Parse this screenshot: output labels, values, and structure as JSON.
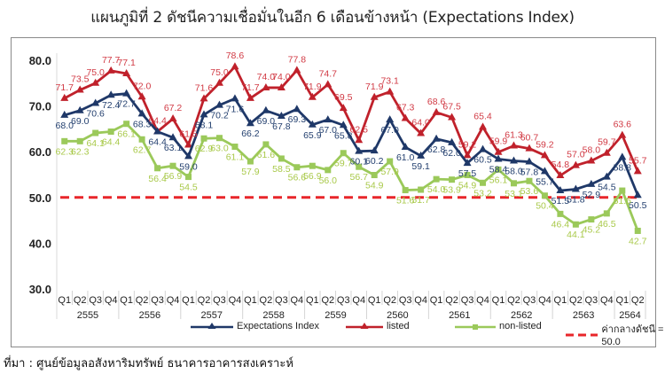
{
  "title": "แผนภูมิที่ 2 ดัชนีความเชื่อมั่นในอีก 6 เดือนข้างหน้า (Expectations Index)",
  "source": "ที่มา : ศูนย์ข้อมูลอสังหาริมทรัพย์ ธนาคารอาคารสงเคราะห์",
  "colors": {
    "expectations": "#1f3868",
    "listed": "#c0212b",
    "non_listed": "#9bc95a",
    "threshold": "#e8262a"
  },
  "legend": [
    {
      "key": "expectations",
      "label": "Expectations Index",
      "marker": "triangle"
    },
    {
      "key": "listed",
      "label": "listed",
      "marker": "triangle"
    },
    {
      "key": "non_listed",
      "label": "non-listed",
      "marker": "square"
    },
    {
      "key": "threshold",
      "label": "ค่ากลางดัชนี = 50.0",
      "marker": "dashed"
    }
  ],
  "chart_data": {
    "type": "line",
    "title": "แผนภูมิที่ 2 ดัชนีความเชื่อมั่นในอีก 6 เดือนข้างหน้า (Expectations Index)",
    "xlabel": "",
    "ylabel": "",
    "ylim": [
      30,
      80
    ],
    "yticks": [
      "30.0",
      "40.0",
      "50.0",
      "60.0",
      "70.0",
      "80.0"
    ],
    "grid": false,
    "legend_position": "bottom",
    "years": [
      "2555",
      "2556",
      "2557",
      "2558",
      "2559",
      "2560",
      "2561",
      "2562",
      "2563",
      "2564"
    ],
    "year_quarters": [
      4,
      4,
      4,
      4,
      4,
      4,
      4,
      4,
      4,
      2
    ],
    "categories": [
      "2555 Q1",
      "2555 Q2",
      "2555 Q3",
      "2555 Q4",
      "2556 Q1",
      "2556 Q2",
      "2556 Q3",
      "2556 Q4",
      "2557 Q1",
      "2557 Q2",
      "2557 Q3",
      "2557 Q4",
      "2558 Q1",
      "2558 Q2",
      "2558 Q3",
      "2558 Q4",
      "2559 Q1",
      "2559 Q2",
      "2559 Q3",
      "2559 Q4",
      "2560 Q1",
      "2560 Q2",
      "2560 Q3",
      "2560 Q4",
      "2561 Q1",
      "2561 Q2",
      "2561 Q3",
      "2561 Q4",
      "2562 Q1",
      "2562 Q2",
      "2562 Q3",
      "2562 Q4",
      "2563 Q1",
      "2563 Q2",
      "2563 Q3",
      "2563 Q4",
      "2564 Q1",
      "2564 Q2"
    ],
    "series": [
      {
        "name": "Expectations Index",
        "values": [
          68.0,
          69.0,
          70.6,
          72.4,
          72.7,
          68.3,
          64.4,
          63.1,
          59.0,
          68.1,
          70.2,
          71.6,
          66.2,
          69.0,
          67.8,
          69.3,
          65.9,
          67.0,
          65.8,
          60.1,
          60.2,
          67.0,
          61.0,
          59.1,
          62.8,
          62.0,
          57.5,
          60.5,
          58.4,
          58.0,
          57.8,
          55.7,
          51.5,
          51.8,
          52.9,
          54.5,
          58.8,
          50.5
        ]
      },
      {
        "name": "listed",
        "values": [
          71.7,
          73.5,
          75.0,
          77.7,
          77.1,
          72.0,
          64.4,
          67.2,
          61.5,
          71.6,
          75.0,
          78.6,
          71.7,
          74.0,
          74.0,
          77.8,
          71.9,
          74.7,
          69.5,
          62.5,
          71.9,
          73.1,
          67.3,
          64.0,
          68.6,
          67.5,
          59.2,
          65.4,
          59.9,
          61.3,
          60.7,
          59.2,
          54.8,
          57.0,
          58.0,
          59.7,
          63.6,
          55.7
        ]
      },
      {
        "name": "non-listed",
        "values": [
          62.3,
          62.3,
          64.1,
          64.4,
          66.1,
          62.7,
          56.4,
          56.9,
          54.5,
          62.9,
          63.0,
          61.1,
          57.9,
          61.6,
          58.5,
          56.6,
          56.9,
          56.0,
          59.7,
          56.7,
          54.9,
          57.9,
          51.6,
          51.7,
          54.0,
          53.9,
          54.9,
          53.2,
          56.1,
          53.1,
          53.6,
          50.4,
          46.4,
          44.1,
          45.2,
          46.5,
          51.5,
          42.7
        ]
      },
      {
        "name": "ค่ากลางดัชนี = 50.0",
        "values": [
          50.0,
          50.0,
          50.0,
          50.0,
          50.0,
          50.0,
          50.0,
          50.0,
          50.0,
          50.0,
          50.0,
          50.0,
          50.0,
          50.0,
          50.0,
          50.0,
          50.0,
          50.0,
          50.0,
          50.0,
          50.0,
          50.0,
          50.0,
          50.0,
          50.0,
          50.0,
          50.0,
          50.0,
          50.0,
          50.0,
          50.0,
          50.0,
          50.0,
          50.0,
          50.0,
          50.0,
          50.0,
          50.0
        ]
      }
    ]
  }
}
